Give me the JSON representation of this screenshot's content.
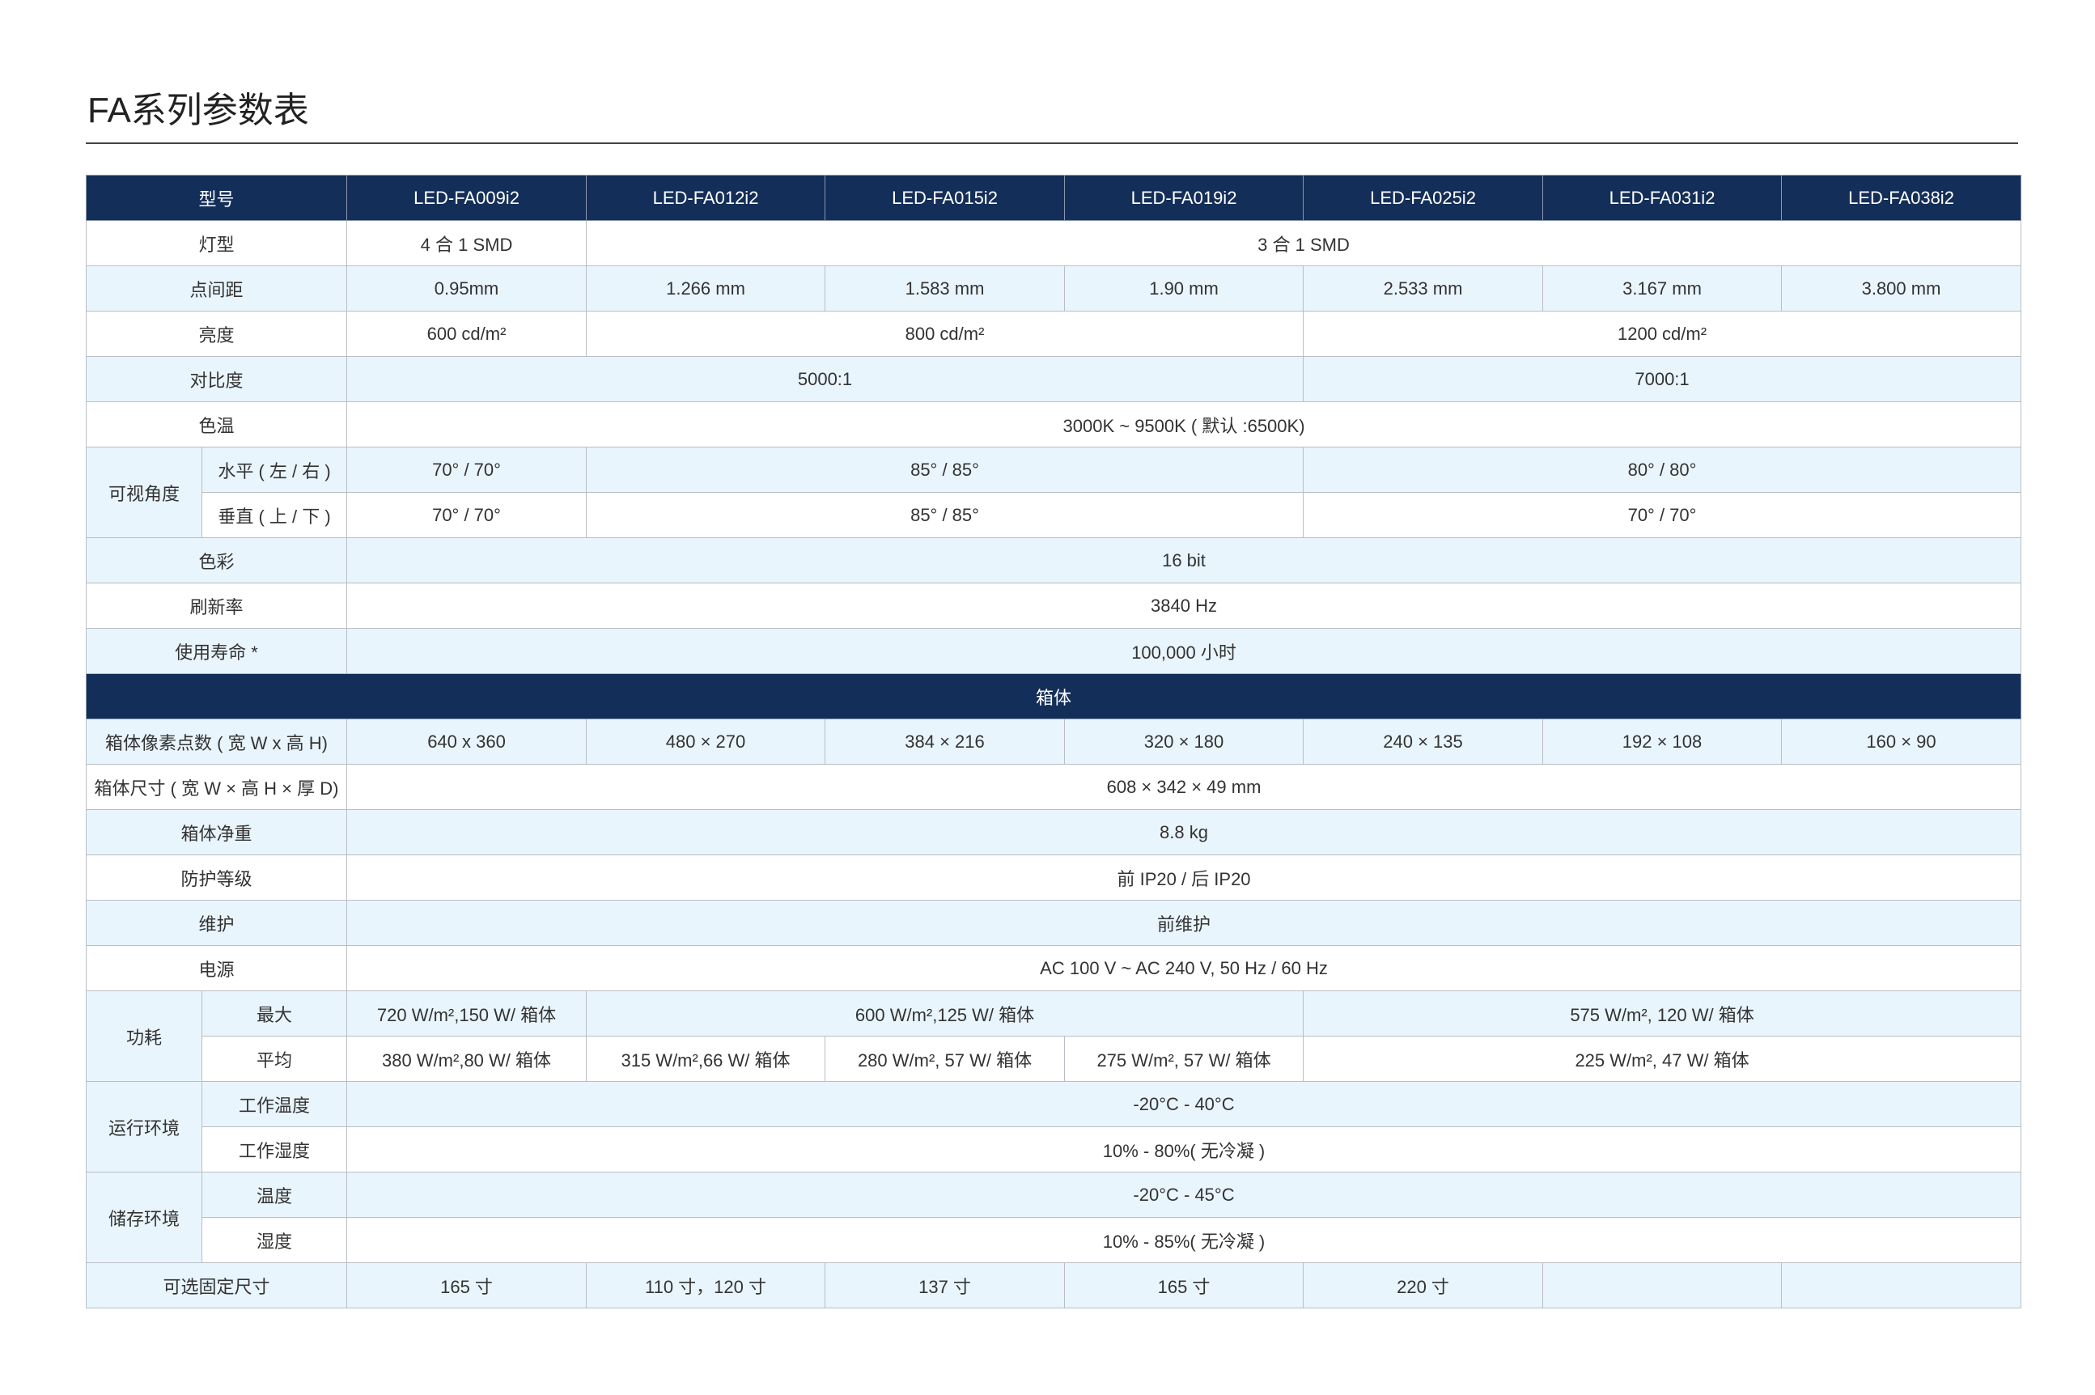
{
  "title": "FA系列参数表",
  "colors": {
    "header": "#132e58",
    "stripe": "#e9f5fc",
    "border": "#b9bec4"
  },
  "header": {
    "label": "型号",
    "models": [
      "LED-FA009i2",
      "LED-FA012i2",
      "LED-FA015i2",
      "LED-FA019i2",
      "LED-FA025i2",
      "LED-FA031i2",
      "LED-FA038i2"
    ]
  },
  "rows": [
    {
      "label": "灯型",
      "shade": false,
      "cells": [
        {
          "text": "4 合 1 SMD",
          "span": 1
        },
        {
          "text": "3 合 1 SMD",
          "span": 6
        }
      ]
    },
    {
      "label": "点间距",
      "shade": true,
      "cells": [
        {
          "text": "0.95mm",
          "span": 1
        },
        {
          "text": "1.266 mm",
          "span": 1
        },
        {
          "text": "1.583 mm",
          "span": 1
        },
        {
          "text": "1.90 mm",
          "span": 1
        },
        {
          "text": "2.533 mm",
          "span": 1
        },
        {
          "text": "3.167 mm",
          "span": 1
        },
        {
          "text": "3.800 mm",
          "span": 1
        }
      ]
    },
    {
      "label": "亮度",
      "shade": false,
      "cells": [
        {
          "text": "600 cd/m²",
          "span": 1
        },
        {
          "text": "800 cd/m²",
          "span": 3
        },
        {
          "text": "1200 cd/m²",
          "span": 3
        }
      ]
    },
    {
      "label": "对比度",
      "shade": true,
      "cells": [
        {
          "text": "5000:1",
          "span": 4
        },
        {
          "text": "7000:1",
          "span": 3
        }
      ]
    },
    {
      "label": "色温",
      "shade": false,
      "cells": [
        {
          "text": "3000K ~ 9500K ( 默认 :6500K)",
          "span": 7
        }
      ]
    },
    {
      "group": "可视角度",
      "rows": [
        {
          "label": "水平 ( 左 / 右 )",
          "shade": true,
          "cells": [
            {
              "text": "70° / 70°",
              "span": 1
            },
            {
              "text": "85° / 85°",
              "span": 3
            },
            {
              "text": "80° / 80°",
              "span": 3
            }
          ]
        },
        {
          "label": "垂直 ( 上 / 下 )",
          "shade": false,
          "cells": [
            {
              "text": "70° / 70°",
              "span": 1
            },
            {
              "text": "85° / 85°",
              "span": 3
            },
            {
              "text": "70° / 70°",
              "span": 3
            }
          ]
        }
      ]
    },
    {
      "label": "色彩",
      "shade": true,
      "cells": [
        {
          "text": "16 bit",
          "span": 7
        }
      ]
    },
    {
      "label": "刷新率",
      "shade": false,
      "cells": [
        {
          "text": "3840 Hz",
          "span": 7
        }
      ]
    },
    {
      "label": "使用寿命 *",
      "shade": true,
      "cells": [
        {
          "text": "100,000 小时",
          "span": 7
        }
      ]
    },
    {
      "section": "箱体"
    },
    {
      "label": "箱体像素点数 ( 宽 W x 高 H)",
      "shade": true,
      "cells": [
        {
          "text": "640 x 360",
          "span": 1
        },
        {
          "text": "480 × 270",
          "span": 1
        },
        {
          "text": "384 × 216",
          "span": 1
        },
        {
          "text": "320 × 180",
          "span": 1
        },
        {
          "text": "240 × 135",
          "span": 1
        },
        {
          "text": "192 × 108",
          "span": 1
        },
        {
          "text": "160 × 90",
          "span": 1
        }
      ]
    },
    {
      "label": "箱体尺寸 ( 宽 W × 高 H × 厚 D)",
      "shade": false,
      "cells": [
        {
          "text": "608 × 342 × 49 mm",
          "span": 7
        }
      ]
    },
    {
      "label": "箱体净重",
      "shade": true,
      "cells": [
        {
          "text": "8.8 kg",
          "span": 7
        }
      ]
    },
    {
      "label": "防护等级",
      "shade": false,
      "cells": [
        {
          "text": "前 IP20 / 后 IP20",
          "span": 7
        }
      ]
    },
    {
      "label": "维护",
      "shade": true,
      "cells": [
        {
          "text": "前维护",
          "span": 7
        }
      ]
    },
    {
      "label": "电源",
      "shade": false,
      "cells": [
        {
          "text": "AC 100 V ~ AC 240 V, 50 Hz / 60 Hz",
          "span": 7
        }
      ]
    },
    {
      "group": "功耗",
      "rows": [
        {
          "label": "最大",
          "shade": true,
          "cells": [
            {
              "text": "720 W/m²,150 W/ 箱体",
              "span": 1
            },
            {
              "text": "600 W/m²,125 W/ 箱体",
              "span": 3
            },
            {
              "text": "575 W/m², 120 W/ 箱体",
              "span": 3
            }
          ]
        },
        {
          "label": "平均",
          "shade": false,
          "cells": [
            {
              "text": "380 W/m²,80 W/ 箱体",
              "span": 1
            },
            {
              "text": "315 W/m²,66 W/ 箱体",
              "span": 1
            },
            {
              "text": "280 W/m², 57 W/ 箱体",
              "span": 1
            },
            {
              "text": "275 W/m², 57 W/ 箱体",
              "span": 1
            },
            {
              "text": "225 W/m², 47 W/ 箱体",
              "span": 3
            }
          ]
        }
      ]
    },
    {
      "group": "运行环境",
      "rows": [
        {
          "label": "工作温度",
          "shade": true,
          "cells": [
            {
              "text": "-20°C - 40°C",
              "span": 7
            }
          ]
        },
        {
          "label": "工作湿度",
          "shade": false,
          "cells": [
            {
              "text": "10% - 80%( 无冷凝 )",
              "span": 7
            }
          ]
        }
      ]
    },
    {
      "group": "储存环境",
      "rows": [
        {
          "label": "温度",
          "shade": true,
          "cells": [
            {
              "text": "-20°C - 45°C",
              "span": 7
            }
          ]
        },
        {
          "label": "湿度",
          "shade": false,
          "cells": [
            {
              "text": "10% - 85%( 无冷凝 )",
              "span": 7
            }
          ]
        }
      ]
    },
    {
      "label": "可选固定尺寸",
      "shade": true,
      "cells": [
        {
          "text": "165 寸",
          "span": 1
        },
        {
          "text": "110 寸，120 寸",
          "span": 1
        },
        {
          "text": "137 寸",
          "span": 1
        },
        {
          "text": "165 寸",
          "span": 1
        },
        {
          "text": "220 寸",
          "span": 1
        },
        {
          "text": "",
          "span": 1
        },
        {
          "text": "",
          "span": 1
        }
      ]
    }
  ]
}
